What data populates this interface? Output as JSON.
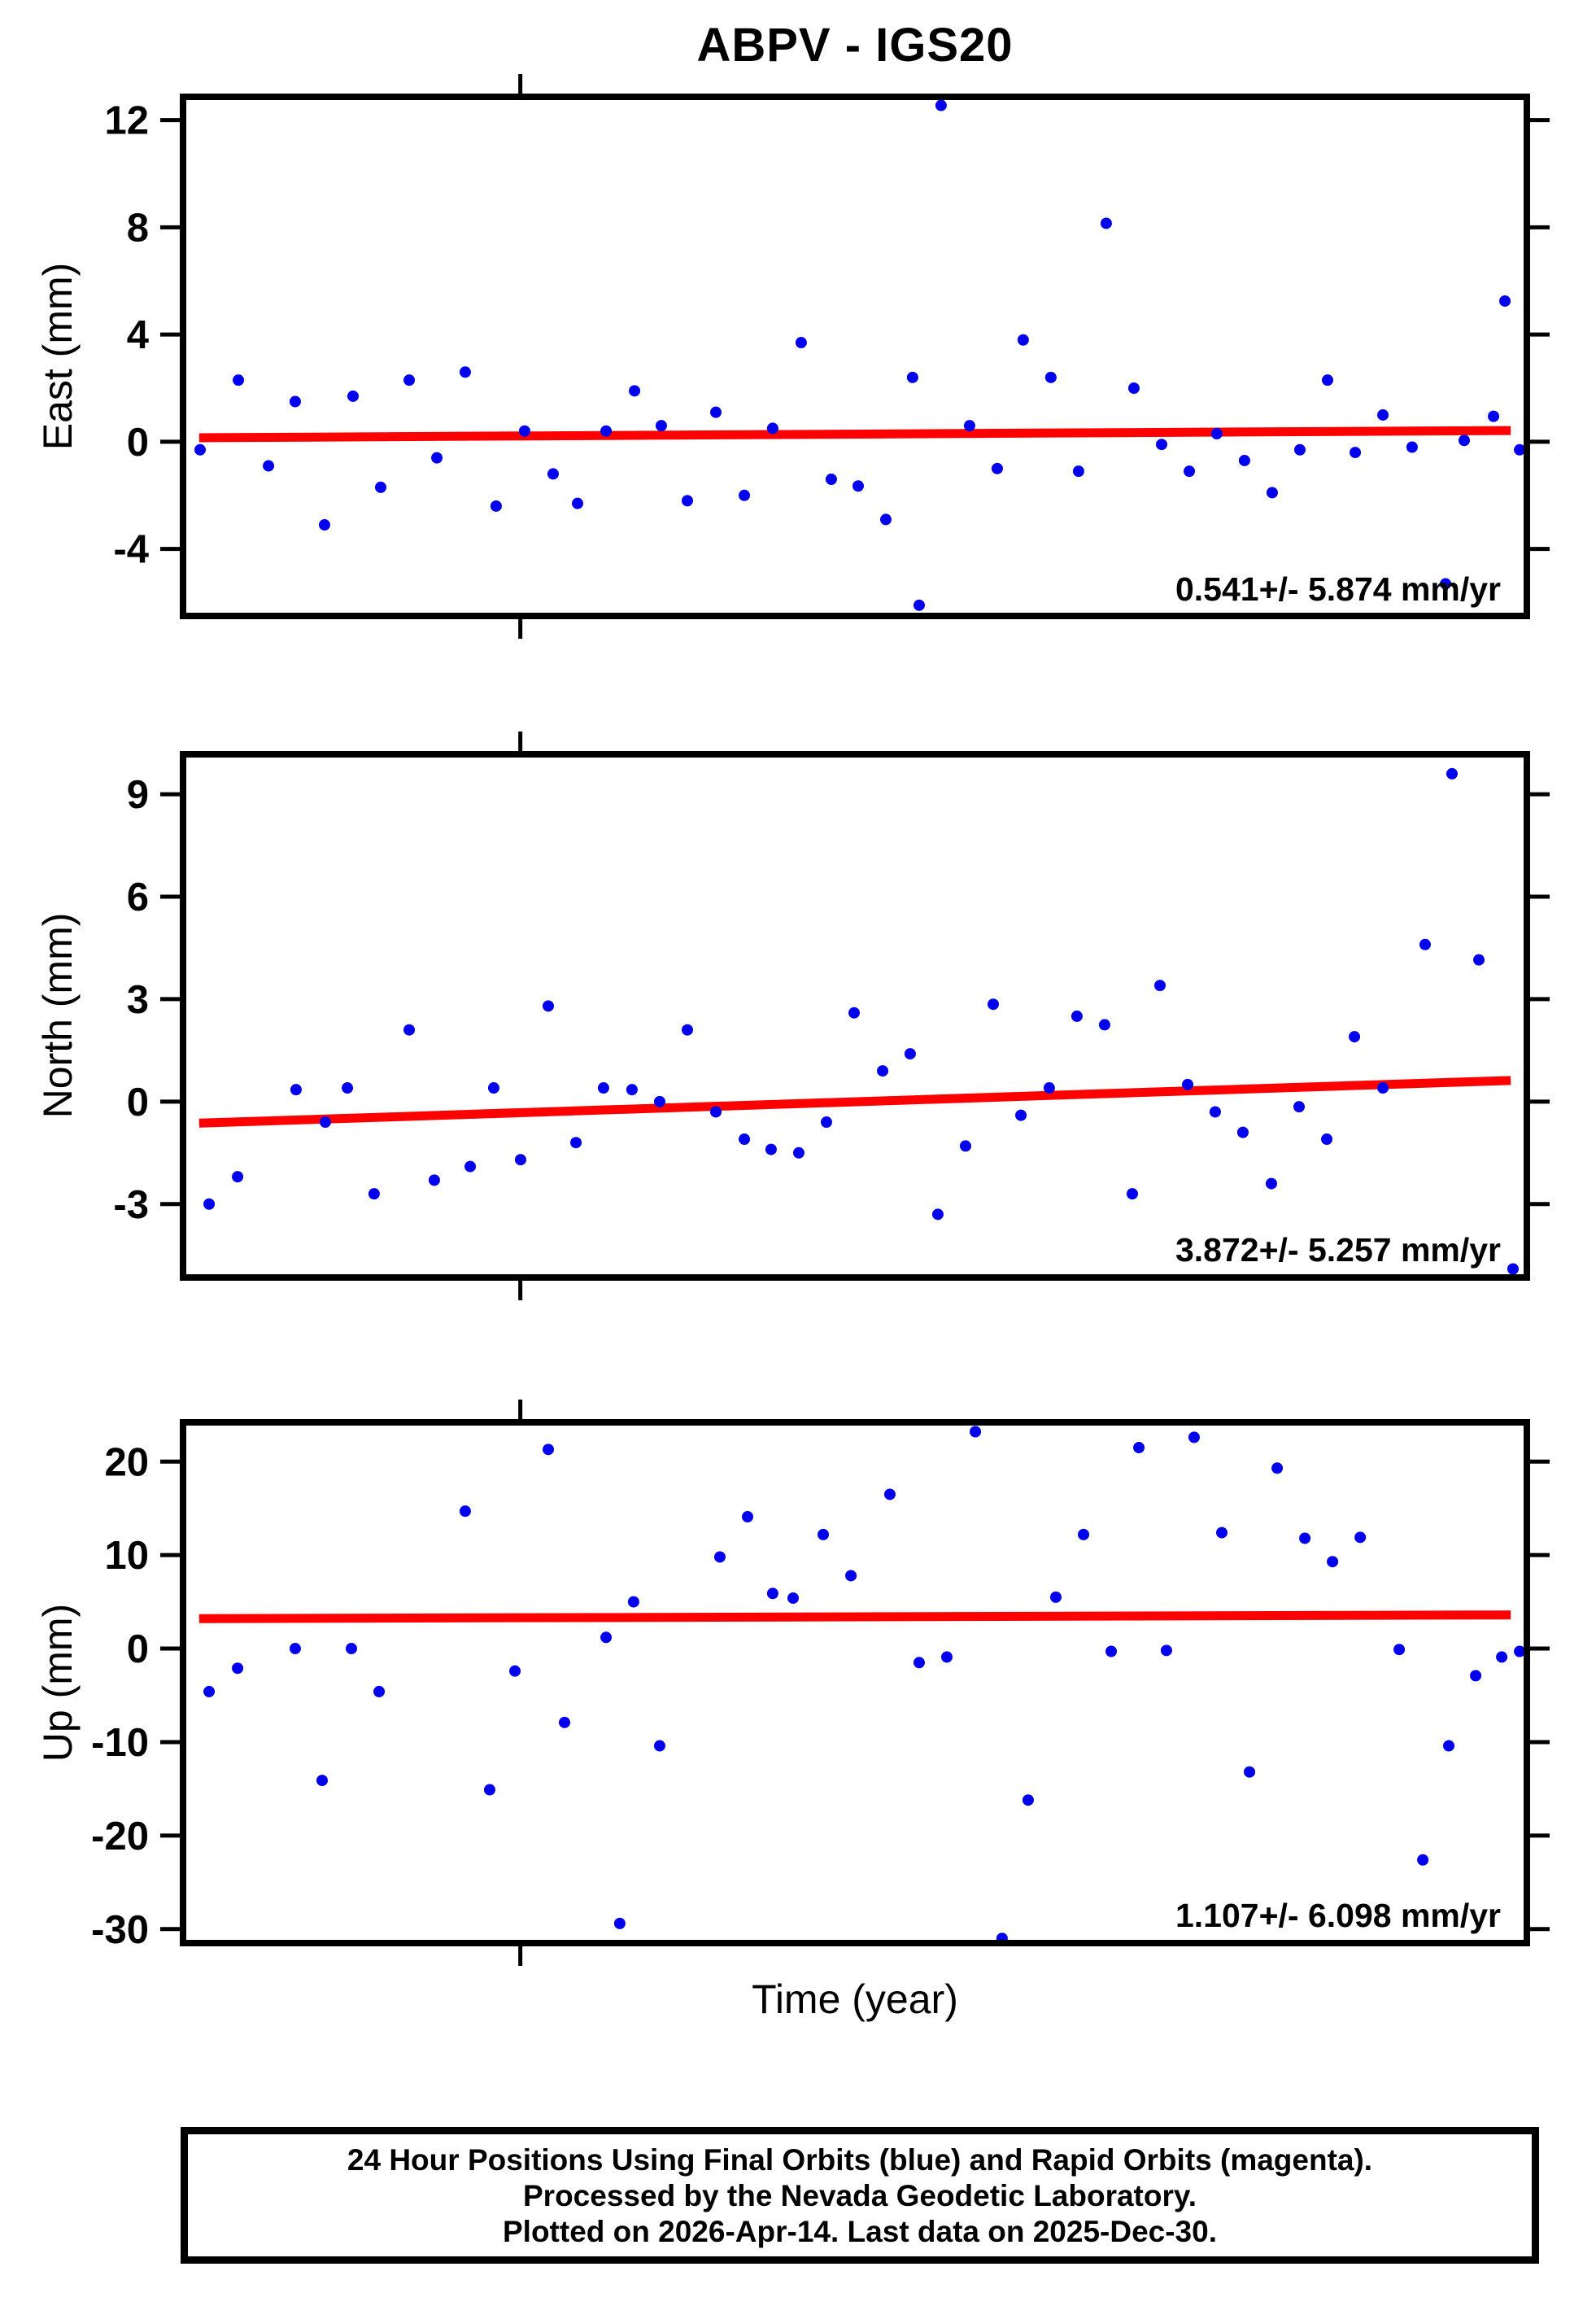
{
  "title": "ABPV - IGS20",
  "xlabel": "Time (year)",
  "caption": {
    "line1": "24 Hour Positions Using Final Orbits (blue) and Rapid Orbits (magenta).",
    "line2": "Processed by the Nevada Geodetic Laboratory.",
    "line3": "Plotted on 2026-Apr-14. Last data on 2025-Dec-30."
  },
  "colors": {
    "point": "#0000ee",
    "trend": "#ff0000",
    "frame": "#000000"
  },
  "x_axis": {
    "tick_fraction": 0.251,
    "label": "Time (year)"
  },
  "chart_data": [
    {
      "type": "scatter",
      "name": "east",
      "ylabel": "East (mm)",
      "ylim": [
        -6.5,
        12.87
      ],
      "yticks": [
        12,
        8,
        4,
        0,
        -4
      ],
      "annotation": "0.541+/- 5.874 mm/yr",
      "trend": {
        "x_frac": [
          0.012,
          0.988
        ],
        "y": [
          0.15,
          0.42
        ]
      },
      "points": [
        [
          0.0127,
          -0.3
        ],
        [
          0.0412,
          2.3
        ],
        [
          0.0636,
          -0.9
        ],
        [
          0.0835,
          1.5
        ],
        [
          0.1053,
          -3.1
        ],
        [
          0.1265,
          1.7
        ],
        [
          0.1471,
          -1.7
        ],
        [
          0.1683,
          2.3
        ],
        [
          0.1889,
          -0.6
        ],
        [
          0.21,
          2.6
        ],
        [
          0.233,
          -2.4
        ],
        [
          0.2542,
          0.4
        ],
        [
          0.2754,
          -1.2
        ],
        [
          0.2936,
          -2.3
        ],
        [
          0.3148,
          0.4
        ],
        [
          0.336,
          1.9
        ],
        [
          0.3559,
          0.6
        ],
        [
          0.3753,
          -2.2
        ],
        [
          0.3965,
          1.1
        ],
        [
          0.4177,
          -2.0
        ],
        [
          0.4388,
          0.5
        ],
        [
          0.46,
          3.7
        ],
        [
          0.4824,
          -1.4
        ],
        [
          0.5024,
          -1.65
        ],
        [
          0.523,
          -2.9
        ],
        [
          0.5429,
          2.4
        ],
        [
          0.5478,
          -6.1
        ],
        [
          0.5641,
          12.55
        ],
        [
          0.5853,
          0.6
        ],
        [
          0.6059,
          -1.0
        ],
        [
          0.6252,
          3.8
        ],
        [
          0.6458,
          2.4
        ],
        [
          0.6664,
          -1.1
        ],
        [
          0.687,
          8.15
        ],
        [
          0.7076,
          2.0
        ],
        [
          0.7282,
          -0.1
        ],
        [
          0.7488,
          -1.1
        ],
        [
          0.7693,
          0.3
        ],
        [
          0.7899,
          -0.7
        ],
        [
          0.8105,
          -1.9
        ],
        [
          0.8311,
          -0.3
        ],
        [
          0.8517,
          2.3
        ],
        [
          0.8723,
          -0.4
        ],
        [
          0.8929,
          1.0
        ],
        [
          0.9146,
          -0.2
        ],
        [
          0.9395,
          -5.3
        ],
        [
          0.9534,
          0.05
        ],
        [
          0.9752,
          0.95
        ],
        [
          0.9837,
          5.25
        ],
        [
          0.9946,
          -0.3
        ]
      ]
    },
    {
      "type": "scatter",
      "name": "north",
      "ylabel": "North (mm)",
      "ylim": [
        -5.15,
        10.17
      ],
      "yticks": [
        9,
        6,
        3,
        0,
        -3
      ],
      "annotation": "3.872+/- 5.257 mm/yr",
      "trend": {
        "x_frac": [
          0.012,
          0.988
        ],
        "y": [
          -0.63,
          0.62
        ]
      },
      "points": [
        [
          0.0194,
          -3.0
        ],
        [
          0.0406,
          -2.2
        ],
        [
          0.0841,
          0.35
        ],
        [
          0.1059,
          -0.6
        ],
        [
          0.1223,
          0.4
        ],
        [
          0.1422,
          -2.7
        ],
        [
          0.1683,
          2.1
        ],
        [
          0.187,
          -2.3
        ],
        [
          0.2137,
          -1.9
        ],
        [
          0.2312,
          0.4
        ],
        [
          0.2512,
          -1.7
        ],
        [
          0.2718,
          2.8
        ],
        [
          0.2924,
          -1.2
        ],
        [
          0.3129,
          0.4
        ],
        [
          0.3341,
          0.35
        ],
        [
          0.3547,
          0.0
        ],
        [
          0.3753,
          2.1
        ],
        [
          0.3965,
          -0.3
        ],
        [
          0.4177,
          -1.1
        ],
        [
          0.4376,
          -1.4
        ],
        [
          0.4582,
          -1.5
        ],
        [
          0.4788,
          -0.6
        ],
        [
          0.4994,
          2.6
        ],
        [
          0.5206,
          0.9
        ],
        [
          0.5411,
          1.4
        ],
        [
          0.5617,
          -3.3
        ],
        [
          0.5823,
          -1.3
        ],
        [
          0.6029,
          2.85
        ],
        [
          0.6235,
          -0.4
        ],
        [
          0.6446,
          0.4
        ],
        [
          0.6652,
          2.5
        ],
        [
          0.6858,
          2.25
        ],
        [
          0.7064,
          -2.7
        ],
        [
          0.727,
          3.4
        ],
        [
          0.7476,
          0.5
        ],
        [
          0.7681,
          -0.3
        ],
        [
          0.7887,
          -0.9
        ],
        [
          0.8099,
          -2.4
        ],
        [
          0.8305,
          -0.15
        ],
        [
          0.8511,
          -1.1
        ],
        [
          0.8717,
          1.9
        ],
        [
          0.8929,
          0.4
        ],
        [
          0.9243,
          4.6
        ],
        [
          0.9443,
          9.6
        ],
        [
          0.9643,
          4.15
        ],
        [
          0.9897,
          -4.9
        ]
      ]
    },
    {
      "type": "scatter",
      "name": "up",
      "ylabel": "Up (mm)",
      "ylim": [
        -31.5,
        24.2
      ],
      "yticks": [
        20,
        10,
        0,
        -10,
        -20,
        -30
      ],
      "annotation": "1.107+/- 6.098 mm/yr",
      "trend": {
        "x_frac": [
          0.012,
          0.988
        ],
        "y": [
          3.2,
          3.6
        ]
      },
      "points": [
        [
          0.0194,
          -4.6
        ],
        [
          0.0406,
          -2.1
        ],
        [
          0.0835,
          0.0
        ],
        [
          0.1035,
          -14.1
        ],
        [
          0.1253,
          0.0
        ],
        [
          0.1459,
          -4.6
        ],
        [
          0.21,
          14.7
        ],
        [
          0.2282,
          -15.1
        ],
        [
          0.247,
          -2.4
        ],
        [
          0.2718,
          21.3
        ],
        [
          0.2839,
          -7.9
        ],
        [
          0.3148,
          1.2
        ],
        [
          0.325,
          -29.4
        ],
        [
          0.3353,
          5.0
        ],
        [
          0.3547,
          -10.4
        ],
        [
          0.3995,
          9.8
        ],
        [
          0.4201,
          14.1
        ],
        [
          0.4388,
          5.9
        ],
        [
          0.454,
          5.4
        ],
        [
          0.4764,
          12.2
        ],
        [
          0.497,
          7.8
        ],
        [
          0.526,
          16.5
        ],
        [
          0.5478,
          -1.5
        ],
        [
          0.5684,
          -0.9
        ],
        [
          0.5896,
          23.2
        ],
        [
          0.6095,
          -31.0
        ],
        [
          0.6289,
          -16.2
        ],
        [
          0.6495,
          5.5
        ],
        [
          0.6701,
          12.2
        ],
        [
          0.6907,
          -0.3
        ],
        [
          0.7113,
          21.5
        ],
        [
          0.7318,
          -0.2
        ],
        [
          0.7524,
          22.6
        ],
        [
          0.773,
          12.4
        ],
        [
          0.7936,
          -13.2
        ],
        [
          0.8142,
          19.3
        ],
        [
          0.8348,
          11.8
        ],
        [
          0.8554,
          9.3
        ],
        [
          0.876,
          11.9
        ],
        [
          0.905,
          -0.1
        ],
        [
          0.9226,
          -22.6
        ],
        [
          0.9419,
          -10.4
        ],
        [
          0.9619,
          -2.9
        ],
        [
          0.9813,
          -0.9
        ],
        [
          0.9946,
          -0.3
        ]
      ]
    }
  ]
}
